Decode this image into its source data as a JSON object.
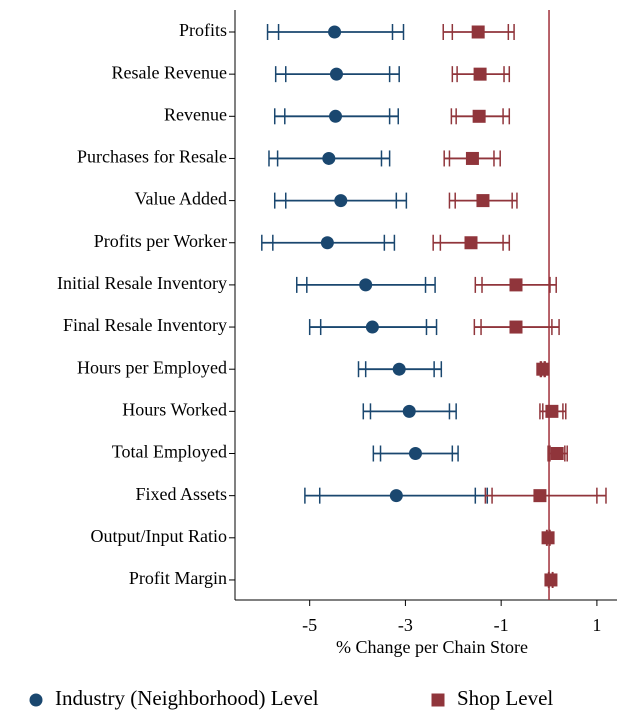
{
  "chart_data": {
    "type": "dot-whisker",
    "x_label": "% Change per Chain Store",
    "categories": [
      "Profits",
      "Resale Revenue",
      "Revenue",
      "Purchases for Resale",
      "Value Added",
      "Profits per Worker",
      "Initial Resale Inventory",
      "Final Resale Inventory",
      "Hours per Employed",
      "Hours Worked",
      "Total Employed",
      "Fixed Assets",
      "Output/Input Ratio",
      "Profit Margin"
    ],
    "xlim": [
      -6.56,
      1.42
    ],
    "xticks": [
      -5,
      -3,
      -1,
      1
    ],
    "reference_line": 0,
    "reference_color": "#a0303a",
    "legend": "bottom",
    "series": [
      {
        "name": "Industry (Neighborhood) Level",
        "color": "#1a476f",
        "marker": "circle",
        "values": [
          -4.48,
          -4.44,
          -4.46,
          -4.6,
          -4.35,
          -4.63,
          -3.83,
          -3.69,
          -3.13,
          -2.92,
          -2.79,
          -3.19,
          null,
          null
        ],
        "ci_low": [
          -5.88,
          -5.71,
          -5.73,
          -5.85,
          -5.73,
          -6.0,
          -5.27,
          -5.0,
          -3.98,
          -3.88,
          -3.67,
          -5.1,
          null,
          null
        ],
        "ci_high": [
          -3.04,
          -3.13,
          -3.15,
          -3.33,
          -2.98,
          -3.23,
          -2.38,
          -2.35,
          -2.25,
          -1.94,
          -1.9,
          -1.29,
          null,
          null
        ],
        "ci90_low": [
          -5.65,
          -5.5,
          -5.52,
          -5.67,
          -5.5,
          -5.77,
          -5.06,
          -4.77,
          -3.83,
          -3.73,
          -3.52,
          -4.79,
          null,
          null
        ],
        "ci90_high": [
          -3.27,
          -3.33,
          -3.33,
          -3.5,
          -3.19,
          -3.44,
          -2.58,
          -2.56,
          -2.4,
          -2.08,
          -2.02,
          -1.54,
          null,
          null
        ]
      },
      {
        "name": "Shop Level",
        "color": "#90353b",
        "marker": "square",
        "values": [
          -1.48,
          -1.44,
          -1.46,
          -1.6,
          -1.38,
          -1.63,
          -0.69,
          -0.69,
          -0.13,
          0.06,
          0.17,
          -0.19,
          -0.02,
          0.04
        ],
        "ci_low": [
          -2.21,
          -2.02,
          -2.04,
          -2.19,
          -2.08,
          -2.42,
          -1.54,
          -1.56,
          -0.18,
          -0.19,
          -0.02,
          -1.33,
          -0.05,
          -0.01
        ],
        "ci_high": [
          -0.73,
          -0.83,
          -0.83,
          -1.02,
          -0.67,
          -0.83,
          0.15,
          0.21,
          -0.08,
          0.35,
          0.38,
          1.19,
          0.02,
          0.08
        ],
        "ci90_low": [
          -2.02,
          -1.92,
          -1.94,
          -2.08,
          -1.96,
          -2.27,
          -1.4,
          -1.42,
          -0.16,
          -0.13,
          0.02,
          -1.19,
          -0.04,
          0.0
        ],
        "ci90_high": [
          -0.85,
          -0.94,
          -0.96,
          -1.15,
          -0.77,
          -0.96,
          0.02,
          0.06,
          -0.1,
          0.29,
          0.33,
          1.0,
          0.01,
          0.07
        ]
      }
    ]
  }
}
